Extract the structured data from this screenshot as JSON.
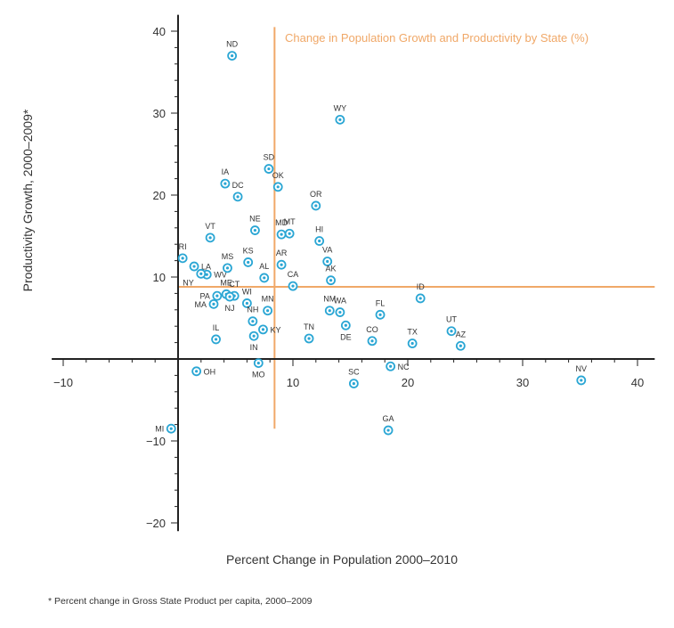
{
  "colors": {
    "accent": "#f0a868",
    "point": "#2aa6d4",
    "axis": "#222222"
  },
  "footnote": "* Percent change in Gross State Product per capita, 2000–2009",
  "chart_data": {
    "type": "scatter",
    "title": "Change in Population Growth and Productivity by State (%)",
    "xlabel": "Percent Change in Population 2000–2010",
    "ylabel": "Productivity Growth, 2000–2009*",
    "xlim": [
      -11,
      41.5
    ],
    "ylim": [
      -21,
      42
    ],
    "xticks": [
      -10,
      10,
      20,
      30,
      40
    ],
    "yticks": [
      40,
      30,
      20,
      10,
      -10,
      -20
    ],
    "xtick_labels": [
      "−10",
      "10",
      "20",
      "30",
      "40"
    ],
    "ytick_labels": [
      "40",
      "30",
      "20",
      "10",
      "−10",
      "−20"
    ],
    "reference_lines": {
      "x": 8.4,
      "y": 8.8
    },
    "grid": false,
    "points": [
      {
        "label": "ND",
        "x": 4.7,
        "y": 37.0,
        "pos": "above"
      },
      {
        "label": "WY",
        "x": 14.1,
        "y": 29.2,
        "pos": "above"
      },
      {
        "label": "SD",
        "x": 7.9,
        "y": 23.2,
        "pos": "above"
      },
      {
        "label": "IA",
        "x": 4.1,
        "y": 21.4,
        "pos": "above"
      },
      {
        "label": "DC",
        "x": 5.2,
        "y": 19.8,
        "pos": "above"
      },
      {
        "label": "OK",
        "x": 8.7,
        "y": 21.0,
        "pos": "above"
      },
      {
        "label": "OR",
        "x": 12.0,
        "y": 18.7,
        "pos": "above"
      },
      {
        "label": "VT",
        "x": 2.8,
        "y": 14.8,
        "pos": "above"
      },
      {
        "label": "NE",
        "x": 6.7,
        "y": 15.7,
        "pos": "above"
      },
      {
        "label": "MD",
        "x": 9.0,
        "y": 15.2,
        "pos": "above"
      },
      {
        "label": "MT",
        "x": 9.7,
        "y": 15.3,
        "pos": "above"
      },
      {
        "label": "HI",
        "x": 12.3,
        "y": 14.4,
        "pos": "above"
      },
      {
        "label": "RI",
        "x": 0.4,
        "y": 12.3,
        "pos": "above"
      },
      {
        "label": "LA",
        "x": 1.4,
        "y": 11.3,
        "pos": "right"
      },
      {
        "label": "WV",
        "x": 2.5,
        "y": 10.3,
        "pos": "right"
      },
      {
        "label": "NY",
        "x": 2.0,
        "y": 10.4,
        "pos": "left-below"
      },
      {
        "label": "MS",
        "x": 4.3,
        "y": 11.1,
        "pos": "above"
      },
      {
        "label": "KS",
        "x": 6.1,
        "y": 11.8,
        "pos": "above"
      },
      {
        "label": "AR",
        "x": 9.0,
        "y": 11.5,
        "pos": "above"
      },
      {
        "label": "VA",
        "x": 13.0,
        "y": 11.9,
        "pos": "above"
      },
      {
        "label": "AL",
        "x": 7.5,
        "y": 9.9,
        "pos": "above"
      },
      {
        "label": "AK",
        "x": 13.3,
        "y": 9.6,
        "pos": "above"
      },
      {
        "label": "CA",
        "x": 10.0,
        "y": 8.9,
        "pos": "above"
      },
      {
        "label": "ID",
        "x": 21.1,
        "y": 7.4,
        "pos": "above"
      },
      {
        "label": "ME",
        "x": 4.2,
        "y": 7.9,
        "pos": "above"
      },
      {
        "label": "CT",
        "x": 4.9,
        "y": 7.7,
        "pos": "above"
      },
      {
        "label": "PA",
        "x": 3.4,
        "y": 7.7,
        "pos": "left"
      },
      {
        "label": "WI",
        "x": 6.0,
        "y": 6.8,
        "pos": "above"
      },
      {
        "label": "NJ",
        "x": 4.5,
        "y": 7.6,
        "pos": "below"
      },
      {
        "label": "MA",
        "x": 3.1,
        "y": 6.7,
        "pos": "left"
      },
      {
        "label": "MN",
        "x": 7.8,
        "y": 5.9,
        "pos": "above"
      },
      {
        "label": "NM",
        "x": 13.2,
        "y": 5.9,
        "pos": "above"
      },
      {
        "label": "WA",
        "x": 14.1,
        "y": 5.7,
        "pos": "above"
      },
      {
        "label": "FL",
        "x": 17.6,
        "y": 5.4,
        "pos": "above"
      },
      {
        "label": "NH",
        "x": 6.5,
        "y": 4.6,
        "pos": "above"
      },
      {
        "label": "DE",
        "x": 14.6,
        "y": 4.1,
        "pos": "below"
      },
      {
        "label": "KY",
        "x": 7.4,
        "y": 3.6,
        "pos": "right"
      },
      {
        "label": "UT",
        "x": 23.8,
        "y": 3.4,
        "pos": "above"
      },
      {
        "label": "IL",
        "x": 3.3,
        "y": 2.4,
        "pos": "above"
      },
      {
        "label": "TN",
        "x": 11.4,
        "y": 2.5,
        "pos": "above"
      },
      {
        "label": "CO",
        "x": 16.9,
        "y": 2.2,
        "pos": "above"
      },
      {
        "label": "TX",
        "x": 20.4,
        "y": 1.9,
        "pos": "above"
      },
      {
        "label": "AZ",
        "x": 24.6,
        "y": 1.6,
        "pos": "above"
      },
      {
        "label": "IN",
        "x": 6.6,
        "y": 2.8,
        "pos": "below"
      },
      {
        "label": "MO",
        "x": 7.0,
        "y": -0.5,
        "pos": "below"
      },
      {
        "label": "NC",
        "x": 18.5,
        "y": -0.9,
        "pos": "right"
      },
      {
        "label": "OH",
        "x": 1.6,
        "y": -1.5,
        "pos": "right"
      },
      {
        "label": "SC",
        "x": 15.3,
        "y": -3.0,
        "pos": "above"
      },
      {
        "label": "NV",
        "x": 35.1,
        "y": -2.6,
        "pos": "above"
      },
      {
        "label": "GA",
        "x": 18.3,
        "y": -8.7,
        "pos": "above"
      },
      {
        "label": "MI",
        "x": -0.6,
        "y": -8.5,
        "pos": "left"
      }
    ]
  }
}
